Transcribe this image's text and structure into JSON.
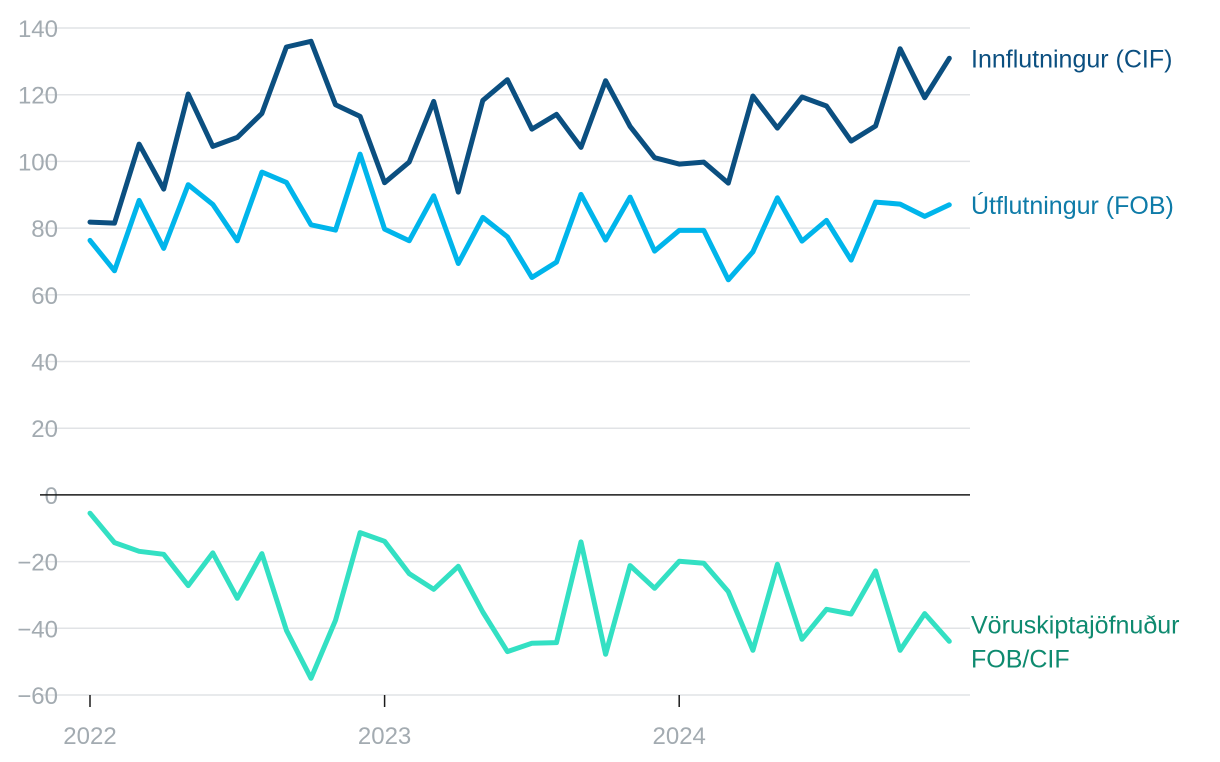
{
  "chart_data": {
    "type": "line",
    "title": "",
    "xlabel": "",
    "ylabel": "",
    "ylim": [
      -60,
      140
    ],
    "yticks": [
      140,
      120,
      100,
      80,
      60,
      40,
      20,
      0,
      -20,
      -40,
      -60
    ],
    "ytick_labels": [
      "140",
      "120",
      "100",
      "80",
      "60",
      "40",
      "20",
      "0",
      "−20",
      "−40",
      "−60"
    ],
    "xticks": [
      {
        "x": "2022-01",
        "label": "2022"
      },
      {
        "x": "2023-01",
        "label": "2023"
      },
      {
        "x": "2024-01",
        "label": "2024"
      }
    ],
    "grid": true,
    "x": [
      "2022-01",
      "2022-02",
      "2022-03",
      "2022-04",
      "2022-05",
      "2022-06",
      "2022-07",
      "2022-08",
      "2022-09",
      "2022-10",
      "2022-11",
      "2022-12",
      "2023-01",
      "2023-02",
      "2023-03",
      "2023-04",
      "2023-05",
      "2023-06",
      "2023-07",
      "2023-08",
      "2023-09",
      "2023-10",
      "2023-11",
      "2023-12",
      "2024-01",
      "2024-02",
      "2024-03",
      "2024-04",
      "2024-05",
      "2024-06",
      "2024-07",
      "2024-08",
      "2024-09",
      "2024-10",
      "2024-11",
      "2024-12"
    ],
    "series": [
      {
        "name": "Innflutningur (CIF)",
        "label_lines": [
          "Innflutningur (CIF)"
        ],
        "color": "#0b4f80",
        "label_color": "#0b4f80",
        "values": [
          81.8,
          81.5,
          105.2,
          91.7,
          120.2,
          104.5,
          107.2,
          114.4,
          134.3,
          136.0,
          117.0,
          113.5,
          93.6,
          99.8,
          118.0,
          90.8,
          118.3,
          124.5,
          109.7,
          114.1,
          104.2,
          124.2,
          110.5,
          101.1,
          99.2,
          99.8,
          93.5,
          119.6,
          110.0,
          119.3,
          116.6,
          106.1,
          110.6,
          133.8,
          119.1,
          130.9
        ]
      },
      {
        "name": "Útflutningur (FOB)",
        "label_lines": [
          "Útflutningur (FOB)"
        ],
        "color": "#00b5eb",
        "label_color": "#0e7ba8",
        "values": [
          76.3,
          67.2,
          88.3,
          73.9,
          93.0,
          87.1,
          76.2,
          96.8,
          93.7,
          81.0,
          79.4,
          102.2,
          79.7,
          76.2,
          89.7,
          69.4,
          83.2,
          77.4,
          65.2,
          69.8,
          90.1,
          76.4,
          89.3,
          73.1,
          79.3,
          79.3,
          64.5,
          72.9,
          89.1,
          76.1,
          82.3,
          70.4,
          87.8,
          87.2,
          83.5,
          87.0
        ]
      },
      {
        "name": "Vöruskiptajöfnuður FOB/CIF",
        "label_lines": [
          "Vöruskiptajöfnuður",
          "FOB/CIF"
        ],
        "color": "#33e0c3",
        "label_color": "#0e8a6f",
        "values": [
          -5.5,
          -14.3,
          -16.9,
          -17.8,
          -27.2,
          -17.4,
          -31.0,
          -17.6,
          -40.6,
          -55.0,
          -37.6,
          -11.3,
          -13.9,
          -23.6,
          -28.3,
          -21.4,
          -35.1,
          -47.0,
          -44.5,
          -44.3,
          -14.1,
          -47.8,
          -21.2,
          -28.0,
          -19.9,
          -20.5,
          -29.0,
          -46.6,
          -20.8,
          -43.3,
          -34.3,
          -35.7,
          -22.8,
          -46.6,
          -35.6,
          -43.9
        ]
      }
    ]
  }
}
